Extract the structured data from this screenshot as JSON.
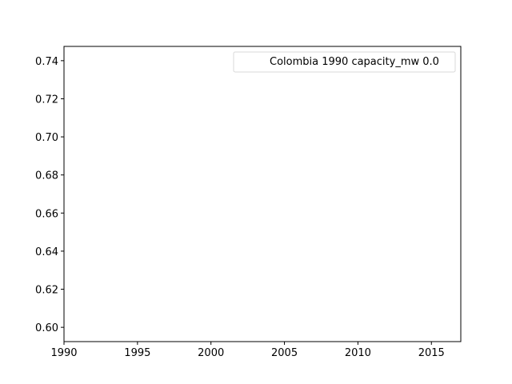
{
  "chart_data": {
    "type": "line",
    "title": "",
    "xlabel": "",
    "ylabel": "",
    "xlim": [
      1990,
      2017
    ],
    "ylim": [
      0.5925,
      0.7475
    ],
    "x_ticks": [
      1990,
      1995,
      2000,
      2005,
      2010,
      2015
    ],
    "y_ticks": [
      0.6,
      0.62,
      0.64,
      0.66,
      0.68,
      0.7,
      0.72,
      0.74
    ],
    "x_tick_labels": [
      "1990",
      "1995",
      "2000",
      "2005",
      "2010",
      "2015"
    ],
    "y_tick_labels": [
      "0.60",
      "0.62",
      "0.64",
      "0.66",
      "0.68",
      "0.70",
      "0.72",
      "0.74"
    ],
    "grid": false,
    "legend_position": "top-right",
    "series": [
      {
        "name": "Colombia 1990 capacity_mw 0.0",
        "x": [],
        "y": [],
        "color": "#ffffff"
      }
    ]
  }
}
